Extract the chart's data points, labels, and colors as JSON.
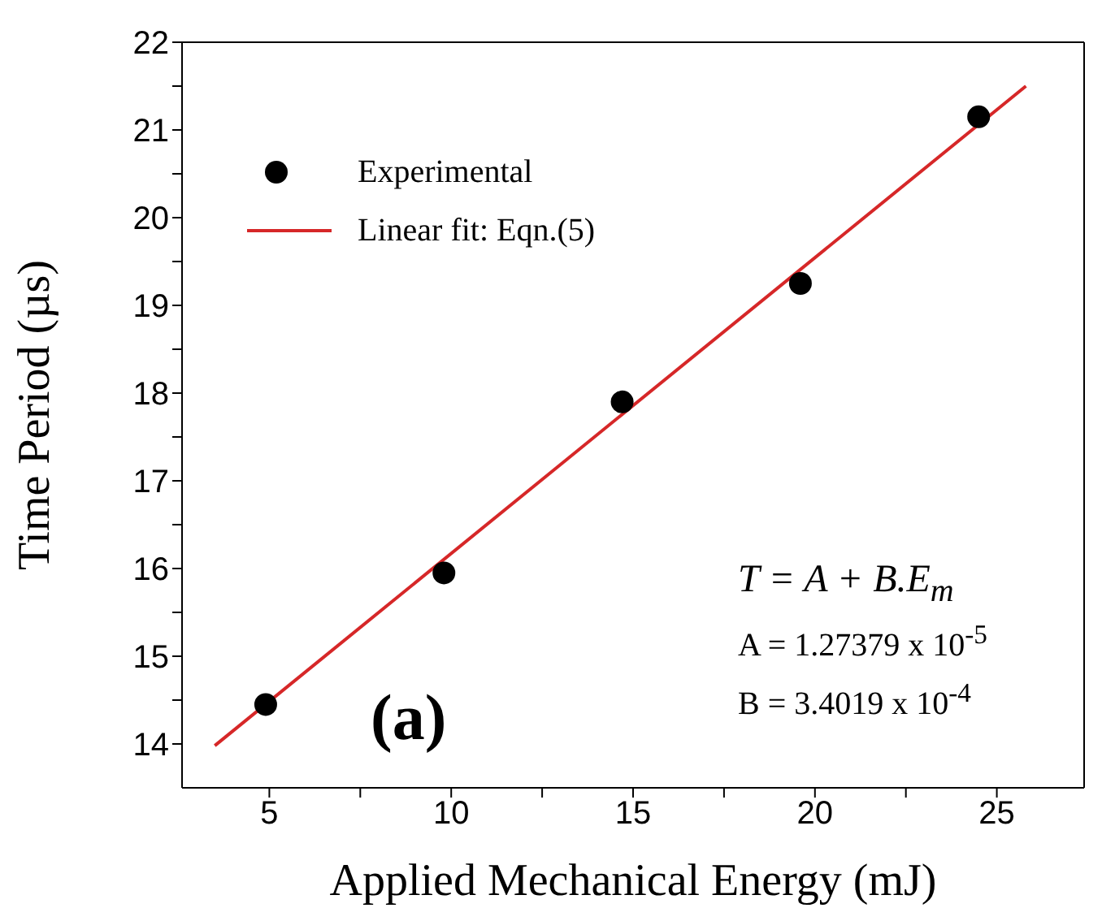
{
  "chart_data": {
    "type": "scatter",
    "xlabel": "Applied Mechanical Energy (mJ)",
    "ylabel": "Time Period (µs)",
    "xlim": [
      2.6,
      27.4
    ],
    "ylim": [
      13.5,
      22
    ],
    "xticks": [
      5,
      {
        "value": 7.5,
        "label": null
      },
      10,
      {
        "value": 12.5,
        "label": null
      },
      15,
      {
        "value": 17.5,
        "label": null
      },
      20,
      {
        "value": 22.5,
        "label": null
      },
      25
    ],
    "yticks": [
      14,
      {
        "value": 14.5,
        "label": null
      },
      15,
      {
        "value": 15.5,
        "label": null
      },
      16,
      {
        "value": 16.5,
        "label": null
      },
      17,
      {
        "value": 17.5,
        "label": null
      },
      18,
      {
        "value": 18.5,
        "label": null
      },
      19,
      {
        "value": 19.5,
        "label": null
      },
      20,
      {
        "value": 20.5,
        "label": null
      },
      21,
      {
        "value": 21.5,
        "label": null
      },
      22
    ],
    "series": [
      {
        "name": "Experimental",
        "color": "#000000",
        "marker": "circle",
        "x": [
          4.9,
          9.8,
          14.7,
          19.6,
          24.5
        ],
        "values": [
          14.45,
          15.95,
          17.9,
          19.25,
          21.15
        ]
      },
      {
        "name": "Linear fit: Eqn.(5)",
        "type": "line",
        "color": "#d62728",
        "marker": "none",
        "x": [
          3.5,
          25.8
        ],
        "values": [
          13.98,
          21.5
        ]
      }
    ],
    "legend": "top left",
    "grid": false,
    "annotations": [
      "T = A + B.E$_{m}$",
      "A = 1.27379 x 10$^{-5}$",
      "B = 3.4019 x 10$^{-4}$",
      "(a)"
    ]
  }
}
